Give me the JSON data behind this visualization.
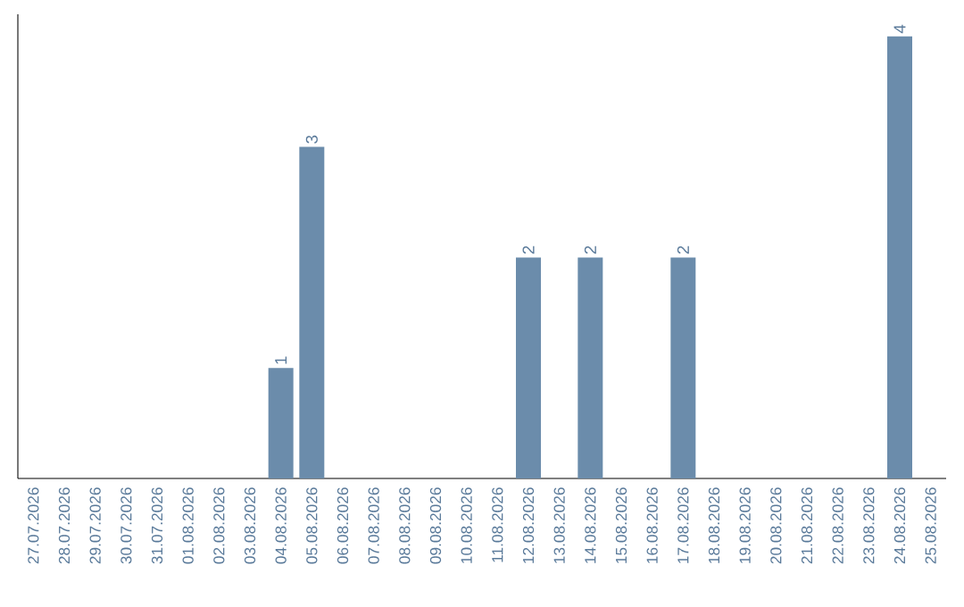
{
  "chart_data": {
    "type": "bar",
    "categories": [
      "27.07.2026",
      "28.07.2026",
      "29.07.2026",
      "30.07.2026",
      "31.07.2026",
      "01.08.2026",
      "02.08.2026",
      "03.08.2026",
      "04.08.2026",
      "05.08.2026",
      "06.08.2026",
      "07.08.2026",
      "08.08.2026",
      "09.08.2026",
      "10.08.2026",
      "11.08.2026",
      "12.08.2026",
      "13.08.2026",
      "14.08.2026",
      "15.08.2026",
      "16.08.2026",
      "17.08.2026",
      "18.08.2026",
      "19.08.2026",
      "20.08.2026",
      "21.08.2026",
      "22.08.2026",
      "23.08.2026",
      "24.08.2026",
      "25.08.2026"
    ],
    "values": [
      0,
      0,
      0,
      0,
      0,
      0,
      0,
      0,
      1,
      3,
      0,
      0,
      0,
      0,
      0,
      0,
      2,
      0,
      2,
      0,
      0,
      2,
      0,
      0,
      0,
      0,
      0,
      0,
      4,
      0
    ],
    "value_labels": [
      null,
      null,
      null,
      null,
      null,
      null,
      null,
      null,
      "1",
      "3",
      null,
      null,
      null,
      null,
      null,
      null,
      "2",
      null,
      "2",
      null,
      null,
      "2",
      null,
      null,
      null,
      null,
      null,
      null,
      "4",
      null
    ],
    "color": "#6b8cab",
    "ylim": [
      0,
      4.2
    ],
    "grid": false,
    "tick_labels": "x"
  }
}
